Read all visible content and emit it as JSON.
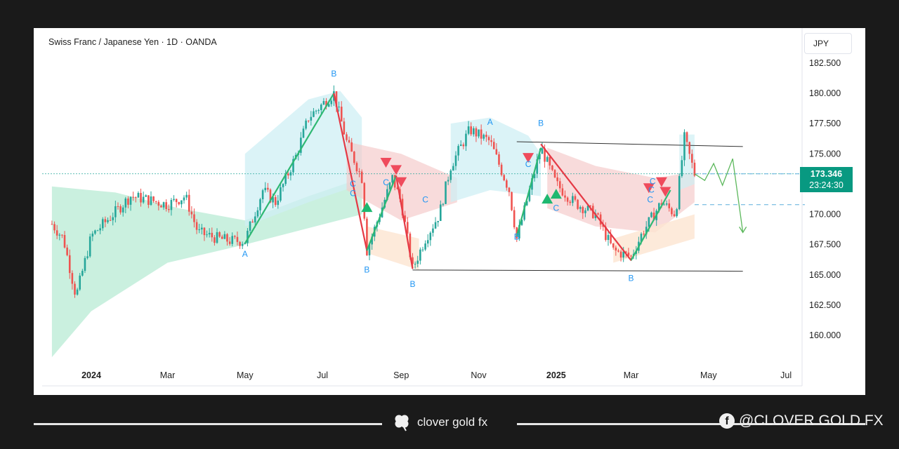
{
  "chart_title": "Swiss Franc / Japanese Yen · 1D · OANDA",
  "currency": "JPY",
  "last_price": "173.346",
  "countdown": "23:24:30",
  "brand": "clover gold fx",
  "social": "@CLOVER GOLD FX",
  "colors": {
    "background": "#1a1a1a",
    "up": "#26a69a",
    "down": "#ef5350",
    "accent": "#089981",
    "wave": "#2196f3",
    "zigzag_up": "#2eb872",
    "zigzag_down": "#e53945"
  },
  "icons": {
    "brand": "clover-icon",
    "social": "facebook-icon"
  },
  "chart_data": {
    "type": "candlestick",
    "title": "Swiss Franc / Japanese Yen · 1D · OANDA",
    "xlabel": "",
    "ylabel": "",
    "ylim": [
      157.5,
      185.0
    ],
    "y_ticks": [
      "182.500",
      "180.000",
      "177.500",
      "175.000",
      "172.500",
      "170.000",
      "167.500",
      "165.000",
      "162.500",
      "160.000"
    ],
    "x_ticks": [
      "2024",
      "Mar",
      "May",
      "Jul",
      "Sep",
      "Nov",
      "2025",
      "Mar",
      "May",
      "Jul"
    ],
    "grid": false,
    "close_path": [
      [
        "2023-12-01",
        169.2
      ],
      [
        "2023-12-10",
        168.0
      ],
      [
        "2023-12-20",
        163.2
      ],
      [
        "2024-01-01",
        168.2
      ],
      [
        "2024-01-20",
        170.2
      ],
      [
        "2024-02-01",
        171.5
      ],
      [
        "2024-02-15",
        171.2
      ],
      [
        "2024-03-01",
        170.8
      ],
      [
        "2024-03-15",
        171.5
      ],
      [
        "2024-03-25",
        168.5
      ],
      [
        "2024-04-10",
        168.0
      ],
      [
        "2024-04-20",
        167.8
      ],
      [
        "2024-05-01",
        167.8
      ],
      [
        "2024-05-15",
        172.0
      ],
      [
        "2024-05-25",
        171.0
      ],
      [
        "2024-06-10",
        174.8
      ],
      [
        "2024-06-20",
        178.0
      ],
      [
        "2024-07-10",
        180.0
      ],
      [
        "2024-07-20",
        176.0
      ],
      [
        "2024-08-01",
        173.0
      ],
      [
        "2024-08-05",
        167.0
      ],
      [
        "2024-08-15",
        170.0
      ],
      [
        "2024-08-25",
        173.0
      ],
      [
        "2024-09-01",
        171.0
      ],
      [
        "2024-09-10",
        165.5
      ],
      [
        "2024-09-20",
        168.0
      ],
      [
        "2024-10-01",
        170.0
      ],
      [
        "2024-10-10",
        174.0
      ],
      [
        "2024-10-25",
        177.0
      ],
      [
        "2024-11-10",
        176.0
      ],
      [
        "2024-11-25",
        172.0
      ],
      [
        "2024-12-01",
        168.0
      ],
      [
        "2024-12-10",
        171.5
      ],
      [
        "2024-12-20",
        175.5
      ],
      [
        "2025-01-01",
        172.5
      ],
      [
        "2025-01-15",
        171.0
      ],
      [
        "2025-02-01",
        170.0
      ],
      [
        "2025-02-15",
        167.0
      ],
      [
        "2025-03-01",
        166.5
      ],
      [
        "2025-03-10",
        168.5
      ],
      [
        "2025-03-25",
        171.0
      ],
      [
        "2025-04-05",
        170.0
      ],
      [
        "2025-04-12",
        176.3
      ],
      [
        "2025-04-20",
        173.346
      ]
    ],
    "projection": [
      [
        "2025-04-20",
        173.346
      ],
      [
        "2025-04-28",
        172.8
      ],
      [
        "2025-05-05",
        174.2
      ],
      [
        "2025-05-12",
        172.4
      ],
      [
        "2025-05-20",
        174.6
      ],
      [
        "2025-05-28",
        168.5
      ]
    ],
    "channel_lines": [
      {
        "from": [
          "2024-12-01",
          176.0
        ],
        "to": [
          "2025-05-28",
          175.6
        ]
      },
      {
        "from": [
          "2024-09-10",
          165.4
        ],
        "to": [
          "2025-05-28",
          165.3
        ]
      }
    ],
    "horizontal_levels": [
      173.346,
      170.8
    ],
    "wave_labels": [
      {
        "text": "A",
        "date": "2024-05-01",
        "price": 166.5
      },
      {
        "text": "B",
        "date": "2024-07-10",
        "price": 181.4
      },
      {
        "text": "B",
        "date": "2024-08-05",
        "price": 165.2
      },
      {
        "text": "C",
        "date": "2024-07-25",
        "price": 172.3
      },
      {
        "text": "C",
        "date": "2024-07-25",
        "price": 171.5
      },
      {
        "text": "C",
        "date": "2024-08-20",
        "price": 172.4
      },
      {
        "text": "B",
        "date": "2024-09-10",
        "price": 164.0
      },
      {
        "text": "C",
        "date": "2024-09-20",
        "price": 171.0
      },
      {
        "text": "A",
        "date": "2024-11-10",
        "price": 177.4
      },
      {
        "text": "B",
        "date": "2024-12-20",
        "price": 177.3
      },
      {
        "text": "C",
        "date": "2024-12-10",
        "price": 173.9
      },
      {
        "text": "B",
        "date": "2024-12-01",
        "price": 167.9
      },
      {
        "text": "C",
        "date": "2025-01-01",
        "price": 170.3
      },
      {
        "text": "B",
        "date": "2025-03-01",
        "price": 164.5
      },
      {
        "text": "C",
        "date": "2025-03-18",
        "price": 172.5
      },
      {
        "text": "C",
        "date": "2025-03-17",
        "price": 171.8
      },
      {
        "text": "C",
        "date": "2025-03-16",
        "price": 171.0
      }
    ]
  }
}
